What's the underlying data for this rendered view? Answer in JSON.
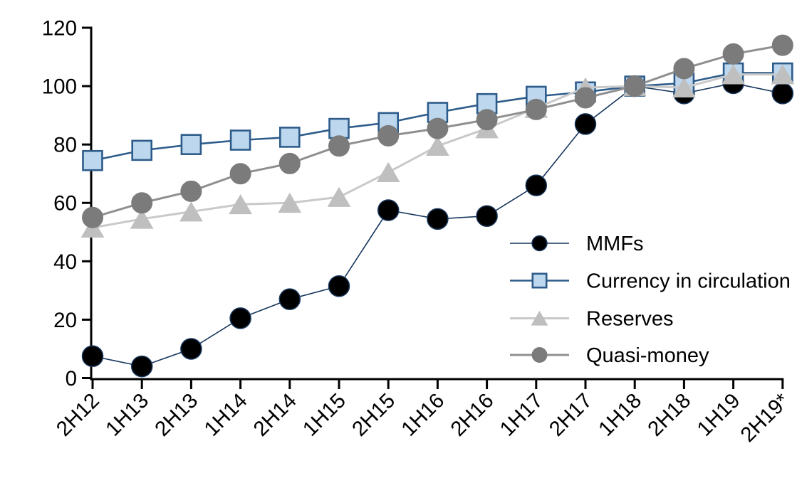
{
  "chart_data": {
    "type": "line",
    "title": "",
    "xlabel": "",
    "ylabel": "",
    "categories": [
      "2H12",
      "1H13",
      "2H13",
      "1H14",
      "2H14",
      "1H15",
      "2H15",
      "1H16",
      "2H16",
      "1H17",
      "2H17",
      "1H18",
      "2H18",
      "1H19",
      "2H19*"
    ],
    "series": [
      {
        "name": "MMFs",
        "values": [
          7.5,
          4,
          10,
          20.5,
          27,
          31.5,
          57.5,
          54.5,
          55.5,
          66,
          87,
          100,
          97.5,
          101,
          97.5
        ],
        "line_color": "#17365D",
        "line_width": 1.6,
        "marker": {
          "shape": "circle",
          "size": 29,
          "fill": "#000000",
          "stroke": "#17365D",
          "stroke_width": 1.5
        }
      },
      {
        "name": "Currency in circulation",
        "values": [
          74.5,
          78,
          80,
          81.5,
          82.5,
          85.5,
          87.5,
          91,
          94,
          96.5,
          98,
          100,
          101,
          104.5,
          104.5
        ],
        "line_color": "#2E5C8A",
        "line_width": 2.6,
        "marker": {
          "shape": "square",
          "size": 27,
          "fill": "#BDD7EE",
          "stroke": "#2E5C8A",
          "stroke_width": 2.6
        }
      },
      {
        "name": "Reserves",
        "values": [
          51.5,
          54.5,
          57,
          59.5,
          60,
          62,
          70.5,
          79.5,
          85.5,
          92.5,
          99.5,
          100,
          99.5,
          104,
          104
        ],
        "line_color": "#C9C9C9",
        "line_width": 3,
        "marker": {
          "shape": "triangle",
          "size": 31,
          "fill": "#BFBFBF",
          "stroke": "#BFBFBF",
          "stroke_width": 1
        }
      },
      {
        "name": "Quasi-money",
        "values": [
          55,
          60,
          64,
          70,
          73.5,
          79.5,
          83,
          85.5,
          88.5,
          92,
          96,
          100,
          106,
          111,
          114
        ],
        "line_color": "#8F8F8F",
        "line_width": 3,
        "marker": {
          "shape": "circle",
          "size": 29,
          "fill": "#7B7B7B",
          "stroke": "#7B7B7B",
          "stroke_width": 1
        }
      }
    ],
    "yticks": [
      0,
      20,
      40,
      60,
      80,
      100,
      120
    ],
    "ylim": [
      0,
      120
    ],
    "grid": false,
    "legend_position": "middle-right",
    "axis_color": "#000000",
    "background_color": "#FFFFFF"
  }
}
